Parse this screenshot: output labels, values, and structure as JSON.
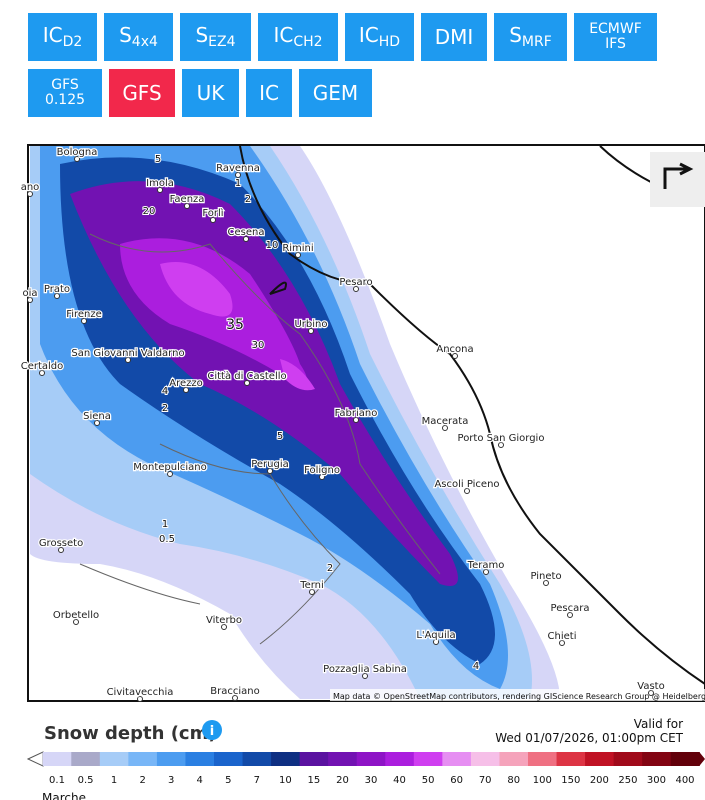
{
  "buttons": [
    {
      "main": "IC",
      "sub": "D2"
    },
    {
      "main": "S",
      "sub": "4x4"
    },
    {
      "main": "S",
      "sub": "EZ4"
    },
    {
      "main": "IC",
      "sub": "CH2"
    },
    {
      "main": "IC",
      "sub": "HD"
    },
    {
      "main": "DMI"
    },
    {
      "main": "S",
      "sub": "MRF"
    },
    {
      "main": "ECMWF",
      "line2": "IFS"
    },
    {
      "main": "GFS",
      "line2": "0.125"
    },
    {
      "main": "GFS",
      "active": true
    },
    {
      "main": "UK"
    },
    {
      "main": "IC"
    },
    {
      "main": "GEM"
    }
  ],
  "map": {
    "cities": [
      "Bologna",
      "Imola",
      "Ravenna",
      "Faenza",
      "Forlì",
      "Cesena",
      "Rimini",
      "Pesaro",
      "Prato",
      "Firenze",
      "Urbino",
      "Ancona",
      "San Giovanni Valdarno",
      "Certaldo",
      "Arezzo",
      "Città di Castello",
      "Siena",
      "Fabriano",
      "Macerata",
      "Porto San Giorgio",
      "Montepulciano",
      "Perugia",
      "Foligno",
      "Ascoli Piceno",
      "Grosseto",
      "Teramo",
      "Pineto",
      "Terni",
      "Pescara",
      "Orbetello",
      "Viterbo",
      "L'Aquila",
      "Chieti",
      "Pozzaglia Sabina",
      "Civitavecchia",
      "Bracciano",
      "Vasto",
      "ano",
      "oia"
    ],
    "contour_labels": [
      "5",
      "20",
      "1",
      "2",
      "10",
      "35",
      "30",
      "4",
      "2",
      "5",
      "1",
      "0.5",
      "2",
      "4"
    ],
    "attribution": "Map data © OpenStreetMap contributors, rendering GIScience Research Group @ Heidelberg University"
  },
  "legend": {
    "title": "Snow depth (cm)",
    "valid_label": "Valid for",
    "valid_time": "Wed 01/07/2026, 01:00pm CET",
    "steps": [
      {
        "label": "0.1",
        "color": "#d6d6f7"
      },
      {
        "label": "0.5",
        "color": "#a9a9c9"
      },
      {
        "label": "1",
        "color": "#a6ccf7"
      },
      {
        "label": "2",
        "color": "#78b6f7"
      },
      {
        "label": "3",
        "color": "#4c9cf0"
      },
      {
        "label": "4",
        "color": "#2a7fe2"
      },
      {
        "label": "5",
        "color": "#1a64cc"
      },
      {
        "label": "7",
        "color": "#124aa8"
      },
      {
        "label": "10",
        "color": "#0e2f82"
      },
      {
        "label": "15",
        "color": "#5a12a0"
      },
      {
        "label": "20",
        "color": "#7212b2"
      },
      {
        "label": "30",
        "color": "#8e14c6"
      },
      {
        "label": "40",
        "color": "#ab1ede"
      },
      {
        "label": "50",
        "color": "#cf3ef0"
      },
      {
        "label": "60",
        "color": "#e68ef2"
      },
      {
        "label": "70",
        "color": "#f6bfe8"
      },
      {
        "label": "80",
        "color": "#f5a3bb"
      },
      {
        "label": "100",
        "color": "#ef7082"
      },
      {
        "label": "150",
        "color": "#dd3444"
      },
      {
        "label": "200",
        "color": "#c01224"
      },
      {
        "label": "250",
        "color": "#a00a1a"
      },
      {
        "label": "300",
        "color": "#820412"
      },
      {
        "label": "400",
        "color": "#62000a"
      }
    ]
  },
  "footer": "Marche"
}
